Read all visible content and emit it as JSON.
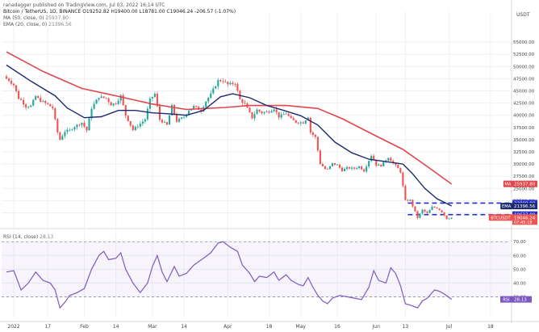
{
  "header": {
    "published": "ranadagger published on TradingView.com, Jul 03, 2022 16:14 UTC",
    "symbol": "Bitcoin / TetherUS, 1D, BINANCE",
    "ohlc": "O19252.82  H19400.00  L18781.00  C19046.24  -206.57 (-1.07%)",
    "ma_label": "MA (50, close, 0)",
    "ma_value": "25937.80",
    "ema_label": "EMA (20, close, 0)",
    "ema_value": "21396.56"
  },
  "rsi_header": {
    "label": "RSI (14, close)",
    "value": "28.13"
  },
  "colors": {
    "up": "#26a69a",
    "down": "#ef5350",
    "ema": "#1e2a6e",
    "ma": "#e0474c",
    "rsi": "#7e57c2",
    "level": "#1f2fd1",
    "dashed_level": "#1f2fd1"
  },
  "chart_data": {
    "type": "candlestick",
    "currency_label": "USDT",
    "price_ticks": [
      "55000.00",
      "52500.00",
      "50000.00",
      "47500.00",
      "45000.00",
      "42500.00",
      "40000.00",
      "37500.00",
      "35000.00",
      "32500.00",
      "30000.00",
      "27500.00",
      "25000.00",
      "22500.00",
      "20000.00"
    ],
    "rsi_ticks": [
      "70.00",
      "60.00",
      "50.00",
      "40.00",
      "30.00"
    ],
    "x_ticks": [
      "2022",
      "17",
      "Feb",
      "14",
      "Mar",
      "14",
      "Apr",
      "18",
      "May",
      "16",
      "Jun",
      "13",
      "Jul",
      "18"
    ],
    "price_labels": [
      {
        "tag": "MA",
        "value": "25937.80",
        "kind": "ma"
      },
      {
        "tag": "",
        "value": "22000.00",
        "kind": "level"
      },
      {
        "tag": "EMA",
        "value": "21396.56",
        "kind": "ema"
      },
      {
        "tag": "",
        "value": "19637.00",
        "kind": "level"
      },
      {
        "tag": "BTCUSDT",
        "value": "19046.24",
        "kind": "price",
        "sub": "07:45:18"
      }
    ],
    "rsi_label": {
      "tag": "RSI",
      "value": "28.13"
    },
    "horizontal_levels": [
      22000,
      19637
    ],
    "close_path": [
      [
        "2021-12-31",
        47500
      ],
      [
        "2022-01-01",
        47200
      ],
      [
        "2022-01-03",
        46200
      ],
      [
        "2022-01-05",
        43500
      ],
      [
        "2022-01-06",
        43100
      ],
      [
        "2022-01-08",
        41800
      ],
      [
        "2022-01-10",
        41900
      ],
      [
        "2022-01-12",
        43900
      ],
      [
        "2022-01-14",
        43000
      ],
      [
        "2022-01-17",
        42200
      ],
      [
        "2022-01-19",
        41500
      ],
      [
        "2022-01-21",
        36500
      ],
      [
        "2022-01-22",
        35000
      ],
      [
        "2022-01-24",
        36700
      ],
      [
        "2022-01-26",
        36900
      ],
      [
        "2022-01-28",
        37700
      ],
      [
        "2022-01-31",
        38500
      ],
      [
        "2022-02-02",
        36900
      ],
      [
        "2022-02-04",
        41500
      ],
      [
        "2022-02-07",
        43800
      ],
      [
        "2022-02-10",
        43500
      ],
      [
        "2022-02-12",
        42200
      ],
      [
        "2022-02-14",
        42500
      ],
      [
        "2022-02-16",
        44000
      ],
      [
        "2022-02-18",
        40000
      ],
      [
        "2022-02-21",
        37000
      ],
      [
        "2022-02-24",
        38300
      ],
      [
        "2022-02-26",
        39200
      ],
      [
        "2022-02-28",
        43200
      ],
      [
        "2022-03-02",
        44400
      ],
      [
        "2022-03-04",
        39100
      ],
      [
        "2022-03-07",
        38000
      ],
      [
        "2022-03-09",
        41900
      ],
      [
        "2022-03-11",
        38800
      ],
      [
        "2022-03-14",
        39700
      ],
      [
        "2022-03-16",
        41100
      ],
      [
        "2022-03-18",
        41800
      ],
      [
        "2022-03-21",
        41000
      ],
      [
        "2022-03-23",
        42900
      ],
      [
        "2022-03-25",
        44300
      ],
      [
        "2022-03-28",
        47100
      ],
      [
        "2022-03-30",
        47100
      ],
      [
        "2022-04-01",
        46300
      ],
      [
        "2022-04-04",
        46600
      ],
      [
        "2022-04-06",
        43200
      ],
      [
        "2022-04-08",
        42300
      ],
      [
        "2022-04-11",
        39500
      ],
      [
        "2022-04-13",
        41100
      ],
      [
        "2022-04-15",
        40500
      ],
      [
        "2022-04-18",
        40800
      ],
      [
        "2022-04-20",
        41400
      ],
      [
        "2022-04-22",
        39700
      ],
      [
        "2022-04-25",
        40400
      ],
      [
        "2022-04-27",
        39200
      ],
      [
        "2022-04-29",
        38600
      ],
      [
        "2022-05-02",
        38500
      ],
      [
        "2022-05-04",
        39700
      ],
      [
        "2022-05-05",
        36500
      ],
      [
        "2022-05-07",
        35500
      ],
      [
        "2022-05-09",
        30100
      ],
      [
        "2022-05-11",
        29000
      ],
      [
        "2022-05-12",
        28900
      ],
      [
        "2022-05-14",
        30100
      ],
      [
        "2022-05-16",
        29800
      ],
      [
        "2022-05-18",
        28700
      ],
      [
        "2022-05-20",
        29200
      ],
      [
        "2022-05-23",
        29100
      ],
      [
        "2022-05-25",
        29500
      ],
      [
        "2022-05-27",
        28600
      ],
      [
        "2022-05-30",
        31800
      ],
      [
        "2022-06-01",
        29800
      ],
      [
        "2022-06-03",
        29700
      ],
      [
        "2022-06-06",
        31400
      ],
      [
        "2022-06-08",
        30200
      ],
      [
        "2022-06-10",
        29100
      ],
      [
        "2022-06-11",
        28400
      ],
      [
        "2022-06-13",
        22500
      ],
      [
        "2022-06-15",
        22600
      ],
      [
        "2022-06-18",
        19000
      ],
      [
        "2022-06-20",
        20600
      ],
      [
        "2022-06-22",
        19900
      ],
      [
        "2022-06-24",
        21200
      ],
      [
        "2022-06-26",
        21000
      ],
      [
        "2022-06-28",
        20200
      ],
      [
        "2022-06-30",
        18800
      ],
      [
        "2022-07-02",
        19050
      ]
    ],
    "ema20_path": [
      [
        "2021-12-31",
        50300
      ],
      [
        "2022-01-10",
        47000
      ],
      [
        "2022-01-20",
        44000
      ],
      [
        "2022-01-25",
        41500
      ],
      [
        "2022-02-01",
        39500
      ],
      [
        "2022-02-08",
        39700
      ],
      [
        "2022-02-15",
        41000
      ],
      [
        "2022-02-22",
        41000
      ],
      [
        "2022-03-01",
        40500
      ],
      [
        "2022-03-08",
        40300
      ],
      [
        "2022-03-15",
        40000
      ],
      [
        "2022-03-22",
        41000
      ],
      [
        "2022-03-29",
        43800
      ],
      [
        "2022-04-03",
        44400
      ],
      [
        "2022-04-10",
        43600
      ],
      [
        "2022-04-17",
        42000
      ],
      [
        "2022-04-24",
        41000
      ],
      [
        "2022-05-01",
        39900
      ],
      [
        "2022-05-08",
        38000
      ],
      [
        "2022-05-15",
        34500
      ],
      [
        "2022-05-22",
        32300
      ],
      [
        "2022-05-29",
        31000
      ],
      [
        "2022-06-05",
        30500
      ],
      [
        "2022-06-12",
        30000
      ],
      [
        "2022-06-16",
        28000
      ],
      [
        "2022-06-21",
        25000
      ],
      [
        "2022-06-26",
        22900
      ],
      [
        "2022-07-02",
        21400
      ]
    ],
    "ma50_path": [
      [
        "2021-12-31",
        53000
      ],
      [
        "2022-01-15",
        49000
      ],
      [
        "2022-01-31",
        45500
      ],
      [
        "2022-02-14",
        44000
      ],
      [
        "2022-03-01",
        42300
      ],
      [
        "2022-03-15",
        41200
      ],
      [
        "2022-03-31",
        41600
      ],
      [
        "2022-04-10",
        42000
      ],
      [
        "2022-04-25",
        42000
      ],
      [
        "2022-05-08",
        41400
      ],
      [
        "2022-05-18",
        39300
      ],
      [
        "2022-05-31",
        36000
      ],
      [
        "2022-06-12",
        33000
      ],
      [
        "2022-06-22",
        29500
      ],
      [
        "2022-07-02",
        25900
      ]
    ],
    "rsi_path": [
      [
        "2021-12-31",
        48
      ],
      [
        "2022-01-03",
        49
      ],
      [
        "2022-01-06",
        35
      ],
      [
        "2022-01-09",
        40
      ],
      [
        "2022-01-12",
        48
      ],
      [
        "2022-01-15",
        42
      ],
      [
        "2022-01-18",
        40
      ],
      [
        "2022-01-20",
        35
      ],
      [
        "2022-01-22",
        22
      ],
      [
        "2022-01-24",
        26
      ],
      [
        "2022-01-26",
        31
      ],
      [
        "2022-01-29",
        33
      ],
      [
        "2022-02-01",
        36
      ],
      [
        "2022-02-04",
        50
      ],
      [
        "2022-02-07",
        60
      ],
      [
        "2022-02-09",
        63
      ],
      [
        "2022-02-11",
        57
      ],
      [
        "2022-02-14",
        58
      ],
      [
        "2022-02-16",
        62
      ],
      [
        "2022-02-18",
        50
      ],
      [
        "2022-02-21",
        40
      ],
      [
        "2022-02-24",
        33
      ],
      [
        "2022-02-27",
        40
      ],
      [
        "2022-03-01",
        52
      ],
      [
        "2022-03-03",
        60
      ],
      [
        "2022-03-05",
        48
      ],
      [
        "2022-03-07",
        41
      ],
      [
        "2022-03-10",
        52
      ],
      [
        "2022-03-12",
        45
      ],
      [
        "2022-03-15",
        47
      ],
      [
        "2022-03-18",
        53
      ],
      [
        "2022-03-22",
        58
      ],
      [
        "2022-03-25",
        62
      ],
      [
        "2022-03-28",
        69
      ],
      [
        "2022-03-30",
        70
      ],
      [
        "2022-04-02",
        66
      ],
      [
        "2022-04-05",
        63
      ],
      [
        "2022-04-07",
        53
      ],
      [
        "2022-04-10",
        47
      ],
      [
        "2022-04-12",
        41
      ],
      [
        "2022-04-14",
        45
      ],
      [
        "2022-04-17",
        44
      ],
      [
        "2022-04-20",
        48
      ],
      [
        "2022-04-22",
        42
      ],
      [
        "2022-04-25",
        46
      ],
      [
        "2022-04-27",
        42
      ],
      [
        "2022-04-30",
        39
      ],
      [
        "2022-05-02",
        38
      ],
      [
        "2022-05-04",
        44
      ],
      [
        "2022-05-06",
        37
      ],
      [
        "2022-05-08",
        31
      ],
      [
        "2022-05-10",
        27
      ],
      [
        "2022-05-12",
        25
      ],
      [
        "2022-05-14",
        29
      ],
      [
        "2022-05-17",
        31
      ],
      [
        "2022-05-20",
        30
      ],
      [
        "2022-05-23",
        29
      ],
      [
        "2022-05-26",
        28
      ],
      [
        "2022-05-29",
        37
      ],
      [
        "2022-05-31",
        49
      ],
      [
        "2022-06-02",
        42
      ],
      [
        "2022-06-05",
        40
      ],
      [
        "2022-06-07",
        51
      ],
      [
        "2022-06-09",
        47
      ],
      [
        "2022-06-11",
        38
      ],
      [
        "2022-06-13",
        25
      ],
      [
        "2022-06-15",
        24
      ],
      [
        "2022-06-18",
        22
      ],
      [
        "2022-06-20",
        27
      ],
      [
        "2022-06-22",
        29
      ],
      [
        "2022-06-25",
        35
      ],
      [
        "2022-06-27",
        34
      ],
      [
        "2022-06-29",
        32
      ],
      [
        "2022-07-02",
        28.13
      ]
    ],
    "x_range": [
      "2021-12-29",
      "2022-07-26"
    ],
    "price_range": [
      17600,
      58000
    ],
    "rsi_range": [
      15,
      76
    ]
  }
}
